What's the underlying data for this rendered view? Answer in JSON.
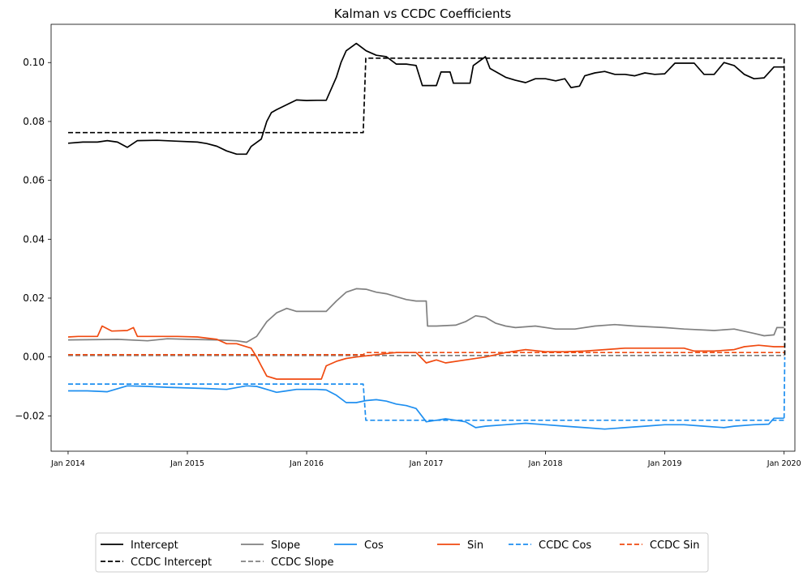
{
  "chart_data": {
    "type": "line",
    "title": "Kalman vs CCDC Coefficients",
    "xlabel": "",
    "ylabel": "",
    "x_tick_labels": [
      "Jan 2014",
      "Jan 2015",
      "Jan 2016",
      "Jan 2017",
      "Jan 2018",
      "Jan 2019",
      "Jan 2020"
    ],
    "x_range": [
      "2013-11",
      "2020-02"
    ],
    "ylim": [
      -0.032,
      0.113
    ],
    "y_ticks": [
      -0.02,
      0.0,
      0.02,
      0.04,
      0.06,
      0.08,
      0.1
    ],
    "y_tick_labels": [
      "−0.02",
      "0.00",
      "0.02",
      "0.04",
      "0.06",
      "0.08",
      "0.10"
    ],
    "grid": false,
    "legend_placement": "below chart, 6 columns",
    "series": [
      {
        "name": "Intercept",
        "color": "#000000",
        "dash": "solid",
        "points": [
          [
            "2014-01-01",
            0.0726
          ],
          [
            "2014-02-15",
            0.073
          ],
          [
            "2014-04-01",
            0.073
          ],
          [
            "2014-05-01",
            0.0735
          ],
          [
            "2014-06-01",
            0.073
          ],
          [
            "2014-07-01",
            0.0712
          ],
          [
            "2014-08-01",
            0.0735
          ],
          [
            "2014-10-01",
            0.0736
          ],
          [
            "2014-12-01",
            0.0733
          ],
          [
            "2015-02-01",
            0.073
          ],
          [
            "2015-03-01",
            0.0725
          ],
          [
            "2015-04-01",
            0.0716
          ],
          [
            "2015-05-01",
            0.07
          ],
          [
            "2015-06-01",
            0.0689
          ],
          [
            "2015-07-01",
            0.0689
          ],
          [
            "2015-07-15",
            0.0715
          ],
          [
            "2015-08-15",
            0.074
          ],
          [
            "2015-09-01",
            0.08
          ],
          [
            "2015-09-15",
            0.083
          ],
          [
            "2015-10-01",
            0.084
          ],
          [
            "2015-11-01",
            0.0857
          ],
          [
            "2015-12-01",
            0.0873
          ],
          [
            "2016-01-01",
            0.0871
          ],
          [
            "2016-02-01",
            0.0872
          ],
          [
            "2016-03-01",
            0.0872
          ],
          [
            "2016-03-20",
            0.092
          ],
          [
            "2016-04-01",
            0.095
          ],
          [
            "2016-04-15",
            0.1
          ],
          [
            "2016-05-01",
            0.104
          ],
          [
            "2016-06-01",
            0.1065
          ],
          [
            "2016-07-01",
            0.104
          ],
          [
            "2016-08-01",
            0.1025
          ],
          [
            "2016-09-01",
            0.102
          ],
          [
            "2016-10-01",
            0.0995
          ],
          [
            "2016-11-01",
            0.0995
          ],
          [
            "2016-12-01",
            0.099
          ],
          [
            "2016-12-20",
            0.0922
          ],
          [
            "2017-02-01",
            0.0922
          ],
          [
            "2017-02-15",
            0.0968
          ],
          [
            "2017-03-15",
            0.0968
          ],
          [
            "2017-03-25",
            0.093
          ],
          [
            "2017-05-15",
            0.093
          ],
          [
            "2017-05-25",
            0.099
          ],
          [
            "2017-07-01",
            0.102
          ],
          [
            "2017-07-15",
            0.098
          ],
          [
            "2017-09-01",
            0.095
          ],
          [
            "2017-10-01",
            0.094
          ],
          [
            "2017-11-01",
            0.0932
          ],
          [
            "2017-12-01",
            0.0945
          ],
          [
            "2018-01-01",
            0.0945
          ],
          [
            "2018-02-01",
            0.0938
          ],
          [
            "2018-03-01",
            0.0945
          ],
          [
            "2018-03-20",
            0.0915
          ],
          [
            "2018-04-15",
            0.092
          ],
          [
            "2018-05-01",
            0.0955
          ],
          [
            "2018-06-01",
            0.0965
          ],
          [
            "2018-07-01",
            0.097
          ],
          [
            "2018-08-01",
            0.096
          ],
          [
            "2018-09-01",
            0.096
          ],
          [
            "2018-10-01",
            0.0955
          ],
          [
            "2018-11-01",
            0.0965
          ],
          [
            "2018-12-01",
            0.096
          ],
          [
            "2019-01-01",
            0.0962
          ],
          [
            "2019-02-01",
            0.0998
          ],
          [
            "2019-03-01",
            0.0998
          ],
          [
            "2019-04-01",
            0.0998
          ],
          [
            "2019-05-01",
            0.096
          ],
          [
            "2019-06-01",
            0.096
          ],
          [
            "2019-07-01",
            0.1
          ],
          [
            "2019-08-01",
            0.099
          ],
          [
            "2019-09-01",
            0.096
          ],
          [
            "2019-10-01",
            0.0945
          ],
          [
            "2019-11-01",
            0.0948
          ],
          [
            "2019-12-01",
            0.0985
          ],
          [
            "2020-01-01",
            0.0985
          ]
        ]
      },
      {
        "name": "CCDC Intercept",
        "color": "#000000",
        "dash": "dashed",
        "points": [
          [
            "2014-01-01",
            0.0762
          ],
          [
            "2016-06-22",
            0.0762
          ],
          [
            "2016-06-30",
            0.1015
          ],
          [
            "2020-01-01",
            0.1015
          ],
          [
            "2020-01-03",
            0.0
          ]
        ]
      },
      {
        "name": "Slope",
        "color": "#808080",
        "dash": "solid",
        "points": [
          [
            "2014-01-01",
            0.0058
          ],
          [
            "2014-06-01",
            0.006
          ],
          [
            "2014-09-01",
            0.0055
          ],
          [
            "2014-11-01",
            0.0062
          ],
          [
            "2015-01-01",
            0.006
          ],
          [
            "2015-04-01",
            0.0058
          ],
          [
            "2015-06-01",
            0.0055
          ],
          [
            "2015-07-01",
            0.005
          ],
          [
            "2015-08-01",
            0.007
          ],
          [
            "2015-09-01",
            0.012
          ],
          [
            "2015-10-01",
            0.015
          ],
          [
            "2015-11-01",
            0.0165
          ],
          [
            "2015-12-01",
            0.0155
          ],
          [
            "2016-01-01",
            0.0155
          ],
          [
            "2016-03-01",
            0.0155
          ],
          [
            "2016-04-01",
            0.019
          ],
          [
            "2016-05-01",
            0.022
          ],
          [
            "2016-06-01",
            0.0232
          ],
          [
            "2016-07-01",
            0.023
          ],
          [
            "2016-08-01",
            0.022
          ],
          [
            "2016-09-01",
            0.0215
          ],
          [
            "2016-10-01",
            0.0205
          ],
          [
            "2016-11-01",
            0.0195
          ],
          [
            "2016-12-01",
            0.019
          ],
          [
            "2017-01-01",
            0.019
          ],
          [
            "2017-01-05",
            0.0105
          ],
          [
            "2017-02-01",
            0.0105
          ],
          [
            "2017-04-01",
            0.0108
          ],
          [
            "2017-05-01",
            0.012
          ],
          [
            "2017-06-01",
            0.014
          ],
          [
            "2017-07-01",
            0.0135
          ],
          [
            "2017-08-01",
            0.0115
          ],
          [
            "2017-09-01",
            0.0105
          ],
          [
            "2017-10-01",
            0.01
          ],
          [
            "2017-12-01",
            0.0105
          ],
          [
            "2018-02-01",
            0.0095
          ],
          [
            "2018-04-01",
            0.0095
          ],
          [
            "2018-06-01",
            0.0105
          ],
          [
            "2018-08-01",
            0.011
          ],
          [
            "2018-10-01",
            0.0105
          ],
          [
            "2019-01-01",
            0.01
          ],
          [
            "2019-03-01",
            0.0095
          ],
          [
            "2019-06-01",
            0.009
          ],
          [
            "2019-08-01",
            0.0095
          ],
          [
            "2019-10-01",
            0.008
          ],
          [
            "2019-11-01",
            0.0072
          ],
          [
            "2019-12-01",
            0.0075
          ],
          [
            "2019-12-10",
            0.01
          ],
          [
            "2020-01-01",
            0.01
          ]
        ]
      },
      {
        "name": "CCDC Slope",
        "color": "#808080",
        "dash": "dashed",
        "points": [
          [
            "2014-01-01",
            0.0005
          ],
          [
            "2020-01-01",
            0.0005
          ]
        ]
      },
      {
        "name": "Cos",
        "color": "#1e8ff0",
        "dash": "solid",
        "points": [
          [
            "2014-01-01",
            -0.0115
          ],
          [
            "2014-03-01",
            -0.0115
          ],
          [
            "2014-05-01",
            -0.0118
          ],
          [
            "2014-07-01",
            -0.0098
          ],
          [
            "2014-09-01",
            -0.01
          ],
          [
            "2014-11-01",
            -0.0103
          ],
          [
            "2015-01-01",
            -0.0105
          ],
          [
            "2015-03-01",
            -0.0107
          ],
          [
            "2015-05-01",
            -0.011
          ],
          [
            "2015-07-01",
            -0.0098
          ],
          [
            "2015-08-01",
            -0.01
          ],
          [
            "2015-09-01",
            -0.011
          ],
          [
            "2015-10-01",
            -0.012
          ],
          [
            "2015-11-01",
            -0.0115
          ],
          [
            "2015-12-01",
            -0.011
          ],
          [
            "2016-02-01",
            -0.011
          ],
          [
            "2016-03-01",
            -0.0112
          ],
          [
            "2016-04-01",
            -0.013
          ],
          [
            "2016-05-01",
            -0.0155
          ],
          [
            "2016-06-01",
            -0.0155
          ],
          [
            "2016-07-01",
            -0.0148
          ],
          [
            "2016-08-01",
            -0.0145
          ],
          [
            "2016-09-01",
            -0.015
          ],
          [
            "2016-10-01",
            -0.016
          ],
          [
            "2016-11-01",
            -0.0165
          ],
          [
            "2016-12-01",
            -0.0175
          ],
          [
            "2017-01-01",
            -0.022
          ],
          [
            "2017-02-01",
            -0.0215
          ],
          [
            "2017-03-01",
            -0.021
          ],
          [
            "2017-04-01",
            -0.0215
          ],
          [
            "2017-05-01",
            -0.022
          ],
          [
            "2017-06-01",
            -0.024
          ],
          [
            "2017-07-01",
            -0.0235
          ],
          [
            "2017-09-01",
            -0.023
          ],
          [
            "2017-11-01",
            -0.0225
          ],
          [
            "2018-01-01",
            -0.023
          ],
          [
            "2018-03-01",
            -0.0235
          ],
          [
            "2018-05-01",
            -0.024
          ],
          [
            "2018-07-01",
            -0.0245
          ],
          [
            "2018-09-01",
            -0.024
          ],
          [
            "2018-11-01",
            -0.0235
          ],
          [
            "2019-01-01",
            -0.023
          ],
          [
            "2019-03-01",
            -0.023
          ],
          [
            "2019-05-01",
            -0.0235
          ],
          [
            "2019-07-01",
            -0.024
          ],
          [
            "2019-08-01",
            -0.0235
          ],
          [
            "2019-10-01",
            -0.023
          ],
          [
            "2019-11-15",
            -0.0228
          ],
          [
            "2019-12-01",
            -0.0208
          ],
          [
            "2020-01-01",
            -0.0208
          ]
        ]
      },
      {
        "name": "Sin",
        "color": "#f04a10",
        "dash": "solid",
        "points": [
          [
            "2014-01-01",
            0.0068
          ],
          [
            "2014-02-01",
            0.007
          ],
          [
            "2014-04-01",
            0.007
          ],
          [
            "2014-04-15",
            0.0105
          ],
          [
            "2014-05-15",
            0.0088
          ],
          [
            "2014-07-01",
            0.009
          ],
          [
            "2014-07-20",
            0.01
          ],
          [
            "2014-08-01",
            0.007
          ],
          [
            "2014-10-01",
            0.007
          ],
          [
            "2014-12-01",
            0.007
          ],
          [
            "2015-02-01",
            0.0068
          ],
          [
            "2015-04-01",
            0.006
          ],
          [
            "2015-05-01",
            0.0045
          ],
          [
            "2015-06-01",
            0.0045
          ],
          [
            "2015-07-15",
            0.003
          ],
          [
            "2015-08-01",
            0.0
          ],
          [
            "2015-08-15",
            -0.003
          ],
          [
            "2015-09-01",
            -0.0065
          ],
          [
            "2015-10-01",
            -0.0075
          ],
          [
            "2015-11-01",
            -0.0075
          ],
          [
            "2016-01-01",
            -0.0075
          ],
          [
            "2016-02-15",
            -0.0075
          ],
          [
            "2016-03-01",
            -0.003
          ],
          [
            "2016-04-01",
            -0.0015
          ],
          [
            "2016-05-01",
            -0.0005
          ],
          [
            "2016-06-01",
            0.0
          ],
          [
            "2016-08-01",
            0.0008
          ],
          [
            "2016-10-01",
            0.0015
          ],
          [
            "2016-12-01",
            0.0015
          ],
          [
            "2017-01-01",
            -0.002
          ],
          [
            "2017-02-01",
            -0.001
          ],
          [
            "2017-03-01",
            -0.002
          ],
          [
            "2017-05-01",
            -0.001
          ],
          [
            "2017-07-01",
            0.0
          ],
          [
            "2017-09-01",
            0.0015
          ],
          [
            "2017-11-01",
            0.0025
          ],
          [
            "2018-01-01",
            0.0018
          ],
          [
            "2018-03-01",
            0.0018
          ],
          [
            "2018-05-01",
            0.002
          ],
          [
            "2018-07-01",
            0.0025
          ],
          [
            "2018-09-01",
            0.003
          ],
          [
            "2018-11-01",
            0.003
          ],
          [
            "2019-01-01",
            0.003
          ],
          [
            "2019-03-01",
            0.003
          ],
          [
            "2019-04-01",
            0.002
          ],
          [
            "2019-06-01",
            0.002
          ],
          [
            "2019-08-01",
            0.0025
          ],
          [
            "2019-09-01",
            0.0035
          ],
          [
            "2019-10-15",
            0.004
          ],
          [
            "2019-12-01",
            0.0035
          ],
          [
            "2020-01-01",
            0.0035
          ]
        ]
      },
      {
        "name": "CCDC Cos",
        "color": "#1e8ff0",
        "dash": "dashed",
        "points": [
          [
            "2014-01-01",
            -0.0092
          ],
          [
            "2016-06-22",
            -0.0092
          ],
          [
            "2016-06-30",
            -0.0215
          ],
          [
            "2020-01-01",
            -0.0215
          ],
          [
            "2020-01-03",
            0.0
          ]
        ]
      },
      {
        "name": "CCDC Sin",
        "color": "#f04a10",
        "dash": "dashed",
        "points": [
          [
            "2014-01-01",
            0.0008
          ],
          [
            "2016-06-22",
            0.0008
          ],
          [
            "2016-06-30",
            0.0015
          ],
          [
            "2020-01-01",
            0.0015
          ]
        ]
      }
    ]
  }
}
